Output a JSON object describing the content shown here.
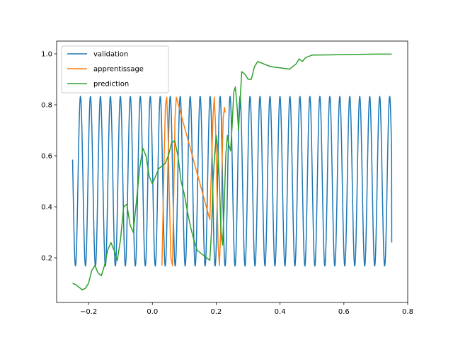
{
  "chart_data": {
    "type": "line",
    "title": "",
    "xlabel": "",
    "ylabel": "",
    "xlim": [
      -0.3,
      0.8
    ],
    "ylim": [
      0.025,
      1.05
    ],
    "xticks": [
      -0.2,
      0.0,
      0.2,
      0.4,
      0.6,
      0.8
    ],
    "xtick_labels": [
      "−0.2",
      "0.0",
      "0.2",
      "0.4",
      "0.6",
      "0.8"
    ],
    "yticks": [
      0.2,
      0.4,
      0.6,
      0.8,
      1.0
    ],
    "ytick_labels": [
      "0.2",
      "0.4",
      "0.6",
      "0.8",
      "1.0"
    ],
    "grid": false,
    "legend_position": "upper-left",
    "series": [
      {
        "name": "validation",
        "color": "#1f77b4",
        "function": {
          "kind": "cosine",
          "x_start": -0.25,
          "x_end": 0.75,
          "period": 0.03125,
          "min": 0.168,
          "max": 0.833,
          "start_value": 0.585
        },
        "end_value": 0.26
      },
      {
        "name": "apprentissage",
        "color": "#ff7f0e",
        "x": [
          0.03,
          0.033,
          0.037,
          0.041,
          0.045,
          0.049,
          0.053,
          0.058,
          0.063,
          0.067,
          0.071,
          0.075,
          0.18,
          0.185,
          0.19,
          0.194,
          0.198,
          0.202,
          0.206,
          0.21,
          0.214,
          0.218,
          0.222,
          0.226,
          0.228
        ],
        "y": [
          0.17,
          0.35,
          0.6,
          0.8,
          0.83,
          0.7,
          0.45,
          0.2,
          0.17,
          0.45,
          0.75,
          0.83,
          0.35,
          0.55,
          0.75,
          0.83,
          0.72,
          0.48,
          0.25,
          0.17,
          0.3,
          0.55,
          0.75,
          0.79,
          0.77
        ]
      },
      {
        "name": "prediction",
        "color": "#2ca02c",
        "x": [
          -0.25,
          -0.24,
          -0.23,
          -0.22,
          -0.21,
          -0.2,
          -0.19,
          -0.18,
          -0.17,
          -0.16,
          -0.15,
          -0.14,
          -0.13,
          -0.12,
          -0.11,
          -0.1,
          -0.09,
          -0.08,
          -0.07,
          -0.06,
          -0.05,
          -0.04,
          -0.03,
          -0.02,
          -0.01,
          0.0,
          0.01,
          0.02,
          0.03,
          0.04,
          0.05,
          0.06,
          0.07,
          0.08,
          0.09,
          0.1,
          0.11,
          0.12,
          0.13,
          0.14,
          0.15,
          0.16,
          0.17,
          0.18,
          0.185,
          0.19,
          0.195,
          0.2,
          0.205,
          0.21,
          0.215,
          0.22,
          0.225,
          0.23,
          0.235,
          0.24,
          0.245,
          0.25,
          0.255,
          0.26,
          0.265,
          0.27,
          0.275,
          0.28,
          0.29,
          0.3,
          0.31,
          0.32,
          0.33,
          0.35,
          0.37,
          0.4,
          0.43,
          0.45,
          0.46,
          0.47,
          0.48,
          0.5,
          0.55,
          0.6,
          0.65,
          0.7,
          0.75
        ],
        "y": [
          0.1,
          0.095,
          0.085,
          0.075,
          0.08,
          0.1,
          0.15,
          0.17,
          0.14,
          0.13,
          0.17,
          0.23,
          0.26,
          0.23,
          0.19,
          0.27,
          0.4,
          0.41,
          0.33,
          0.3,
          0.42,
          0.55,
          0.63,
          0.6,
          0.52,
          0.49,
          0.52,
          0.55,
          0.56,
          0.57,
          0.6,
          0.65,
          0.66,
          0.6,
          0.5,
          0.45,
          0.38,
          0.32,
          0.27,
          0.23,
          0.22,
          0.21,
          0.2,
          0.19,
          0.3,
          0.5,
          0.6,
          0.68,
          0.62,
          0.5,
          0.3,
          0.25,
          0.4,
          0.6,
          0.68,
          0.64,
          0.62,
          0.72,
          0.85,
          0.87,
          0.8,
          0.7,
          0.82,
          0.93,
          0.92,
          0.9,
          0.9,
          0.95,
          0.97,
          0.96,
          0.95,
          0.945,
          0.94,
          0.96,
          0.98,
          0.97,
          0.985,
          0.995,
          0.996,
          0.997,
          0.998,
          0.999,
          0.999
        ]
      }
    ]
  }
}
